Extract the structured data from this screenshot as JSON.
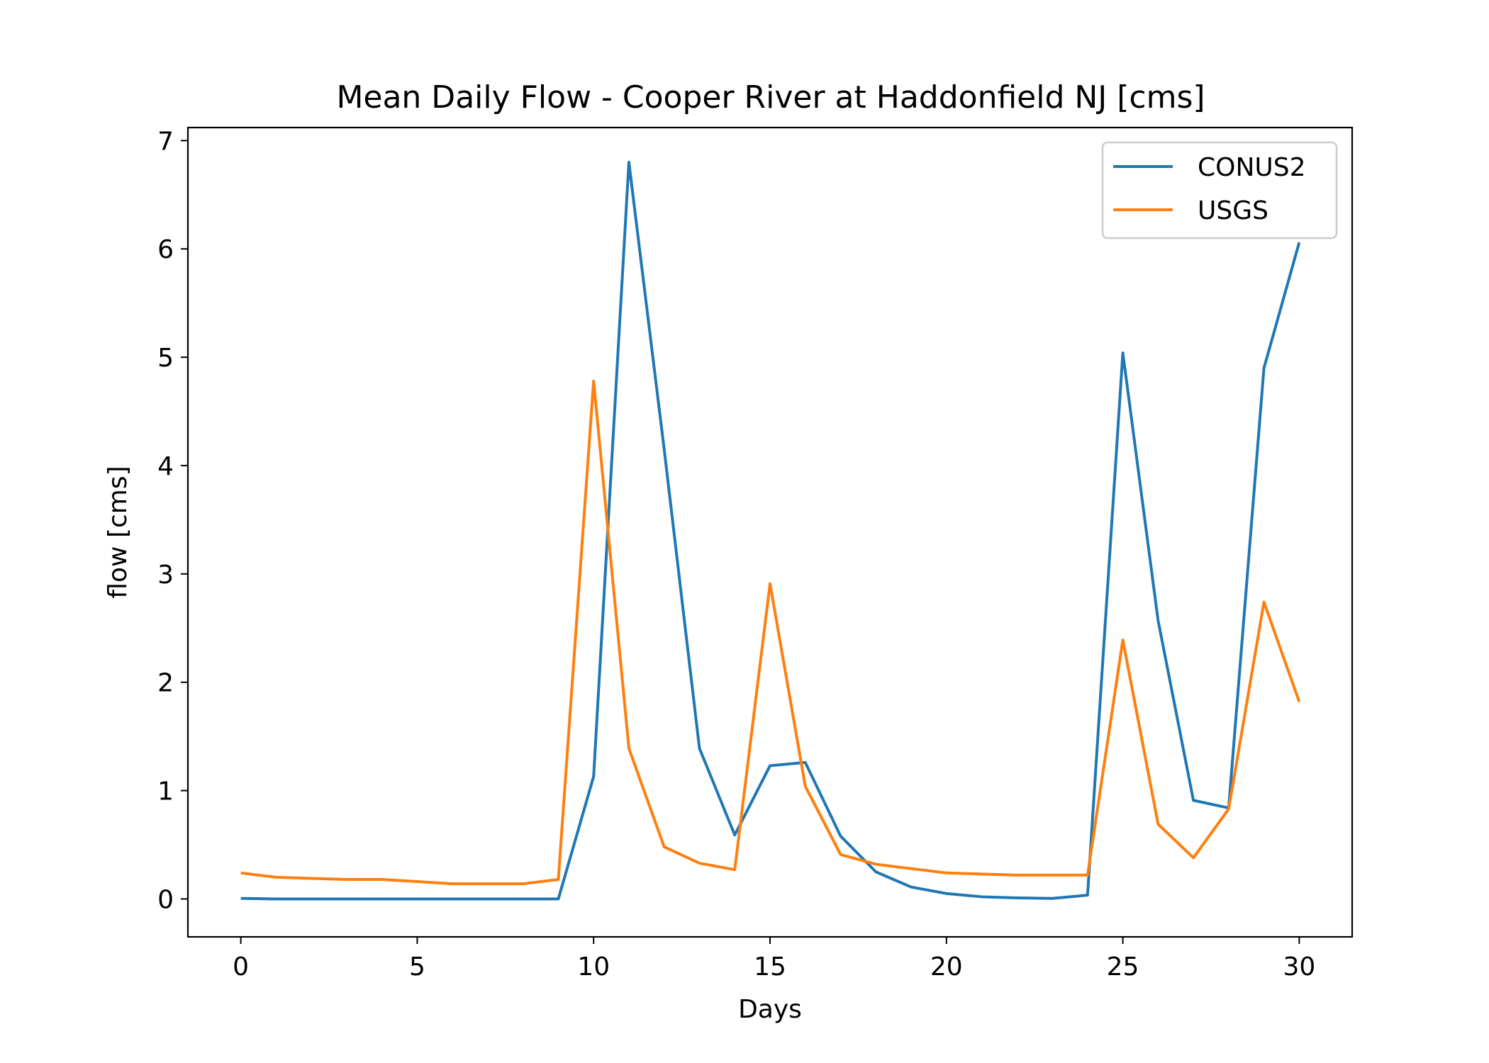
{
  "chart_data": {
    "type": "line",
    "title": "Mean Daily Flow - Cooper River at Haddonfield NJ [cms]",
    "xlabel": "Days",
    "ylabel": "flow [cms]",
    "xlim": [
      -1.5,
      31.5
    ],
    "ylim": [
      -0.35,
      7.12
    ],
    "xticks": [
      0,
      5,
      10,
      15,
      20,
      25,
      30
    ],
    "yticks": [
      0,
      1,
      2,
      3,
      4,
      5,
      6,
      7
    ],
    "grid": false,
    "legend_position": "upper right",
    "x": [
      0,
      1,
      2,
      3,
      4,
      5,
      6,
      7,
      8,
      9,
      10,
      11,
      12,
      13,
      14,
      15,
      16,
      17,
      18,
      19,
      20,
      21,
      22,
      23,
      24,
      25,
      26,
      27,
      28,
      29,
      30
    ],
    "series": [
      {
        "name": "CONUS2",
        "color": "#1f77b4",
        "values": [
          0.005,
          0,
          0,
          0,
          0,
          0,
          0,
          0,
          0,
          0,
          1.13,
          6.8,
          4.15,
          1.39,
          0.59,
          1.23,
          1.26,
          0.58,
          0.25,
          0.11,
          0.05,
          0.02,
          0.01,
          0.005,
          0.035,
          5.04,
          2.57,
          0.91,
          0.84,
          4.9,
          6.06
        ]
      },
      {
        "name": "USGS",
        "color": "#ff7f0e",
        "values": [
          0.24,
          0.2,
          0.19,
          0.18,
          0.18,
          0.16,
          0.14,
          0.14,
          0.14,
          0.18,
          4.78,
          1.39,
          0.48,
          0.33,
          0.27,
          2.91,
          1.04,
          0.41,
          0.32,
          0.28,
          0.24,
          0.23,
          0.22,
          0.22,
          0.22,
          2.39,
          0.69,
          0.38,
          0.83,
          2.74,
          1.82
        ]
      }
    ]
  }
}
